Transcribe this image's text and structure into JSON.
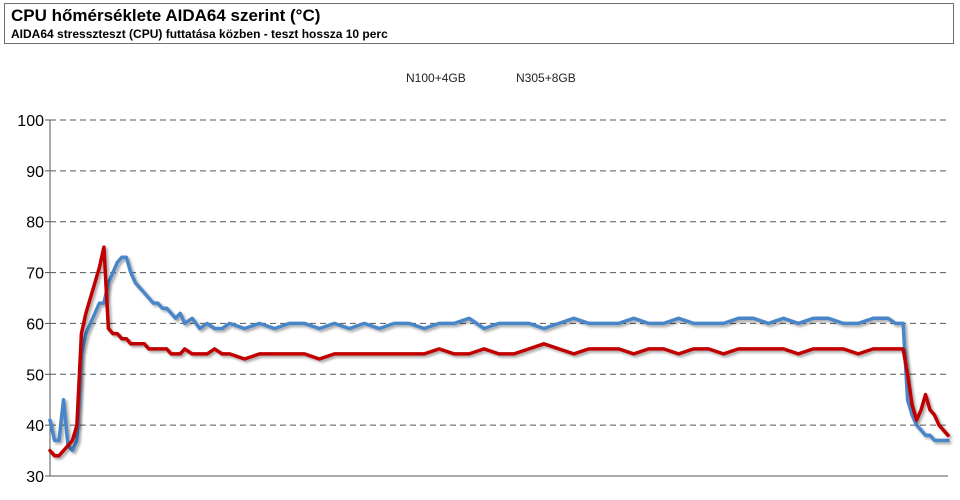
{
  "header": {
    "title": "CPU hőmérséklete AIDA64 szerint (°C)",
    "subtitle": "AIDA64 stresszteszt (CPU) futtatása közben - teszt hossza 10 perc"
  },
  "chart_data": {
    "type": "line",
    "title": "CPU hőmérséklete AIDA64 szerint (°C)",
    "subtitle": "AIDA64 stresszteszt (CPU) futtatása közben - teszt hossza 10 perc",
    "xlabel": "",
    "ylabel": "",
    "ylim": [
      30,
      100
    ],
    "yticks": [
      30,
      40,
      50,
      60,
      70,
      80,
      90,
      100
    ],
    "xlim": [
      0,
      600
    ],
    "x_ticks_shown": false,
    "grid": "horizontal dashed",
    "legend": "top-center",
    "series": [
      {
        "name": "N100+4GB",
        "color": "#4a86c8",
        "x": [
          0,
          3,
          6,
          9,
          12,
          15,
          18,
          21,
          24,
          27,
          30,
          33,
          36,
          39,
          42,
          45,
          48,
          51,
          54,
          57,
          60,
          63,
          66,
          69,
          72,
          75,
          78,
          81,
          84,
          87,
          90,
          95,
          100,
          105,
          110,
          115,
          120,
          130,
          140,
          150,
          160,
          170,
          180,
          190,
          200,
          210,
          220,
          230,
          240,
          250,
          260,
          270,
          280,
          290,
          300,
          310,
          320,
          330,
          340,
          350,
          360,
          370,
          380,
          390,
          400,
          410,
          420,
          430,
          440,
          450,
          460,
          470,
          480,
          490,
          500,
          510,
          520,
          530,
          540,
          550,
          560,
          565,
          570,
          573,
          576,
          579,
          582,
          585,
          588,
          591,
          594,
          597,
          600
        ],
        "values": [
          41,
          37,
          37,
          45,
          36,
          35,
          37,
          54,
          58,
          60,
          62,
          64,
          64,
          68,
          70,
          72,
          73,
          73,
          70,
          68,
          67,
          66,
          65,
          64,
          64,
          63,
          63,
          62,
          61,
          62,
          60,
          61,
          59,
          60,
          59,
          59,
          60,
          59,
          60,
          59,
          60,
          60,
          59,
          60,
          59,
          60,
          59,
          60,
          60,
          59,
          60,
          60,
          61,
          59,
          60,
          60,
          60,
          59,
          60,
          61,
          60,
          60,
          60,
          61,
          60,
          60,
          61,
          60,
          60,
          60,
          61,
          61,
          60,
          61,
          60,
          61,
          61,
          60,
          60,
          61,
          61,
          60,
          60,
          45,
          42,
          40,
          39,
          38,
          38,
          37,
          37,
          37,
          37
        ]
      },
      {
        "name": "N305+8GB",
        "color": "#c00000",
        "x": [
          0,
          3,
          6,
          9,
          12,
          15,
          18,
          21,
          24,
          27,
          30,
          33,
          36,
          39,
          42,
          45,
          48,
          51,
          54,
          57,
          60,
          63,
          66,
          69,
          72,
          75,
          78,
          81,
          84,
          87,
          90,
          95,
          100,
          105,
          110,
          115,
          120,
          130,
          140,
          150,
          160,
          170,
          180,
          190,
          200,
          210,
          220,
          230,
          240,
          250,
          260,
          270,
          280,
          290,
          300,
          310,
          320,
          330,
          340,
          350,
          360,
          370,
          380,
          390,
          400,
          410,
          420,
          430,
          440,
          450,
          460,
          470,
          480,
          490,
          500,
          510,
          520,
          530,
          540,
          550,
          560,
          565,
          570,
          573,
          576,
          579,
          582,
          585,
          588,
          591,
          594,
          597,
          600
        ],
        "values": [
          35,
          34,
          34,
          35,
          36,
          37,
          40,
          58,
          62,
          65,
          68,
          71,
          75,
          59,
          58,
          58,
          57,
          57,
          56,
          56,
          56,
          56,
          55,
          55,
          55,
          55,
          55,
          54,
          54,
          54,
          55,
          54,
          54,
          54,
          55,
          54,
          54,
          53,
          54,
          54,
          54,
          54,
          53,
          54,
          54,
          54,
          54,
          54,
          54,
          54,
          55,
          54,
          54,
          55,
          54,
          54,
          55,
          56,
          55,
          54,
          55,
          55,
          55,
          54,
          55,
          55,
          54,
          55,
          55,
          54,
          55,
          55,
          55,
          55,
          54,
          55,
          55,
          55,
          54,
          55,
          55,
          55,
          55,
          50,
          44,
          41,
          43,
          46,
          43,
          42,
          40,
          39,
          38
        ]
      }
    ]
  }
}
